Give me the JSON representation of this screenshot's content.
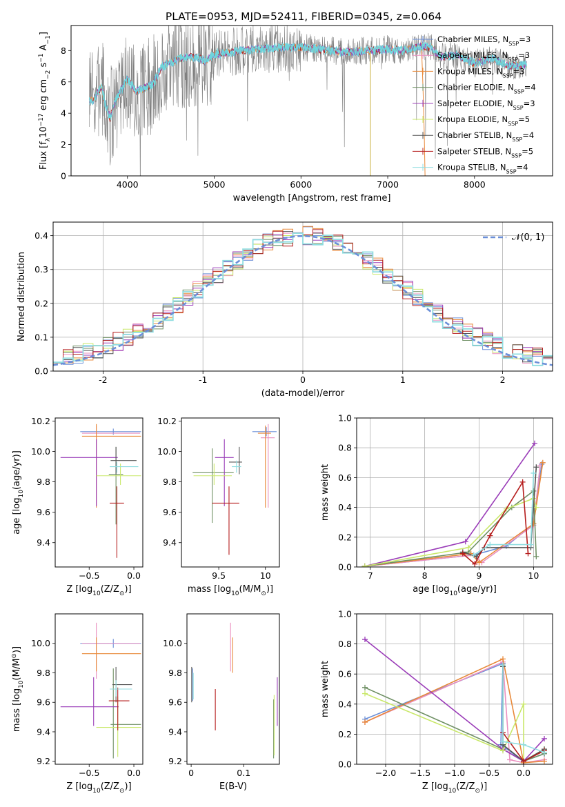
{
  "figure": {
    "title": "PLATE=0953, MJD=52411, FIBERID=0345, z=0.064",
    "colors": [
      "#6b8fd8",
      "#ea8fbf",
      "#e8893a",
      "#6e8f63",
      "#9a3cb8",
      "#c9e86a",
      "#555555",
      "#b51c1c",
      "#8fdde0"
    ]
  },
  "chart_data": [
    {
      "id": "spectrum",
      "type": "line",
      "xlabel": "wavelength [Angstrom, rest frame]",
      "ylabel_parts": [
        "Flux [f",
        "λ",
        "10",
        "−17",
        " erg cm",
        "−2",
        " s",
        "−1",
        " A",
        "−1",
        "]"
      ],
      "xlim": [
        3350,
        8900
      ],
      "ylim": [
        0,
        9.6
      ],
      "xticks": [
        4000,
        5000,
        6000,
        7000,
        8000
      ],
      "yticks": [
        0,
        2,
        4,
        6,
        8
      ],
      "grid": false,
      "legend_position": "top-right",
      "model_color": "#6fd5dc",
      "data_color": "#808080",
      "continuum": {
        "x": [
          3600,
          3700,
          3750,
          3800,
          3850,
          3900,
          4000,
          4100,
          4200,
          4300,
          4400,
          4500,
          4600,
          4800,
          4900,
          5000,
          5100,
          5300,
          5500,
          5800,
          6000,
          6200,
          6500,
          6800,
          7000,
          7200,
          7400,
          7500,
          7600,
          7800,
          8000,
          8200,
          8400,
          8600
        ],
        "y": [
          4.8,
          5.7,
          4.5,
          3.7,
          4.6,
          5.2,
          6.2,
          5.4,
          5.6,
          5.9,
          7.0,
          7.2,
          7.5,
          7.6,
          7.3,
          7.8,
          7.8,
          8.0,
          8.1,
          8.2,
          8.2,
          8.1,
          7.9,
          8.0,
          8.1,
          8.0,
          8.3,
          8.2,
          7.6,
          7.7,
          7.2,
          7.5,
          7.0,
          7.1
        ]
      },
      "series": [
        {
          "label": "Chabrier MILES, N",
          "sub": "SSP",
          "eq": "=3"
        },
        {
          "label": "Salpeter MILES, N",
          "sub": "SSP",
          "eq": "=3"
        },
        {
          "label": "Kroupa MILES, N",
          "sub": "SSP",
          "eq": "=3"
        },
        {
          "label": "Chabrier ELODIE, N",
          "sub": "SSP",
          "eq": "=4"
        },
        {
          "label": "Salpeter ELODIE, N",
          "sub": "SSP",
          "eq": "=3"
        },
        {
          "label": "Kroupa ELODIE, N",
          "sub": "SSP",
          "eq": "=5"
        },
        {
          "label": "Chabrier STELIB, N",
          "sub": "SSP",
          "eq": "=4"
        },
        {
          "label": "Salpeter STELIB, N",
          "sub": "SSP",
          "eq": "=5"
        },
        {
          "label": "Kroupa STELIB, N",
          "sub": "SSP",
          "eq": "=4"
        }
      ]
    },
    {
      "id": "residuals",
      "type": "line",
      "xlabel": "(data-model)/error",
      "ylabel": "Normed distribution",
      "xlim": [
        -2.5,
        2.5
      ],
      "ylim": [
        0,
        0.44
      ],
      "xticks": [
        -2,
        -1,
        0,
        1,
        2
      ],
      "yticks": [
        0.0,
        0.1,
        0.2,
        0.3,
        0.4
      ],
      "grid": true,
      "legend_position": "top-right",
      "gaussian_label": "𝒩(0, 1)",
      "gaussian_mean": 0,
      "gaussian_sigma": 1
    },
    {
      "id": "age_vs_z",
      "type": "scatter",
      "xlabel_parts": [
        "Z [log",
        "10",
        "(Z/Z",
        "⊙",
        ")]"
      ],
      "ylabel_parts": [
        "age  [log",
        "10",
        "(age/yr)]"
      ],
      "xlim": [
        -0.88,
        0.1
      ],
      "ylim": [
        9.24,
        10.22
      ],
      "xticks": [
        -0.5,
        0.0
      ],
      "xticklabels": [
        "−0.5",
        "0.0"
      ],
      "yticks": [
        9.4,
        9.6,
        9.8,
        10.0,
        10.2
      ],
      "grid": false,
      "points": [
        {
          "x": -0.23,
          "xlo": -0.6,
          "xhi": 0.08,
          "y": 10.13,
          "ylo": 10.11,
          "yhi": 10.15
        },
        {
          "x": -0.42,
          "xlo": -0.58,
          "xhi": 0.07,
          "y": 10.12,
          "ylo": 9.64,
          "yhi": 10.17
        },
        {
          "x": -0.42,
          "xlo": -0.58,
          "xhi": 0.08,
          "y": 10.1,
          "ylo": 9.63,
          "yhi": 10.18
        },
        {
          "x": -0.2,
          "xlo": -0.28,
          "xhi": -0.12,
          "y": 9.85,
          "ylo": 9.52,
          "yhi": 10.03
        },
        {
          "x": -0.42,
          "xlo": -0.82,
          "xhi": -0.18,
          "y": 9.96,
          "ylo": 9.64,
          "yhi": 10.08
        },
        {
          "x": -0.15,
          "xlo": -0.42,
          "xhi": 0.08,
          "y": 9.84,
          "ylo": 9.78,
          "yhi": 9.92
        },
        {
          "x": -0.2,
          "xlo": -0.26,
          "xhi": 0.03,
          "y": 9.94,
          "ylo": 9.85,
          "yhi": 10.03
        },
        {
          "x": -0.19,
          "xlo": -0.27,
          "xhi": -0.11,
          "y": 9.66,
          "ylo": 9.3,
          "yhi": 9.77
        },
        {
          "x": -0.19,
          "xlo": -0.27,
          "xhi": 0.05,
          "y": 9.9,
          "ylo": 9.86,
          "yhi": 9.93
        }
      ]
    },
    {
      "id": "age_vs_mass",
      "type": "scatter",
      "xlabel_parts": [
        "mass [log",
        "10",
        "(M/M",
        "⊙",
        ")]"
      ],
      "xlim": [
        9.1,
        10.15
      ],
      "ylim": [
        9.24,
        10.22
      ],
      "xticks": [
        9.5,
        10.0
      ],
      "yticks": [
        9.4,
        9.6,
        9.8,
        10.0,
        10.2
      ],
      "grid": false,
      "points": [
        {
          "x": 10.01,
          "xlo": 9.86,
          "xhi": 10.12,
          "y": 10.13,
          "ylo": 10.1,
          "yhi": 10.16
        },
        {
          "x": 10.03,
          "xlo": 9.95,
          "xhi": 10.1,
          "y": 10.09,
          "ylo": 9.63,
          "yhi": 10.18
        },
        {
          "x": 10.0,
          "xlo": 9.92,
          "xhi": 10.06,
          "y": 10.12,
          "ylo": 9.63,
          "yhi": 10.17
        },
        {
          "x": 9.43,
          "xlo": 9.22,
          "xhi": 9.66,
          "y": 9.86,
          "ylo": 9.53,
          "yhi": 10.02
        },
        {
          "x": 9.56,
          "xlo": 9.46,
          "xhi": 9.66,
          "y": 9.96,
          "ylo": 9.64,
          "yhi": 10.08
        },
        {
          "x": 9.45,
          "xlo": 9.23,
          "xhi": 9.64,
          "y": 9.84,
          "ylo": 9.78,
          "yhi": 9.92
        },
        {
          "x": 9.72,
          "xlo": 9.61,
          "xhi": 9.75,
          "y": 9.93,
          "ylo": 9.85,
          "yhi": 10.03
        },
        {
          "x": 9.61,
          "xlo": 9.43,
          "xhi": 9.72,
          "y": 9.66,
          "ylo": 9.32,
          "yhi": 9.77
        },
        {
          "x": 9.69,
          "xlo": 9.64,
          "xhi": 9.74,
          "y": 9.9,
          "ylo": 9.86,
          "yhi": 9.94
        }
      ]
    },
    {
      "id": "weight_vs_age",
      "type": "line",
      "xlabel_parts": [
        "age  [log",
        "10",
        "(age/yr)]"
      ],
      "ylabel": "mass weight",
      "xlim": [
        6.75,
        10.35
      ],
      "ylim": [
        0,
        1.0
      ],
      "xticks": [
        7,
        8,
        9,
        10
      ],
      "yticks": [
        0.0,
        0.2,
        0.4,
        0.6,
        0.8,
        1.0
      ],
      "grid": true,
      "series": [
        {
          "x": [
            6.9,
            8.9,
            9.5,
            10.0,
            10.15
          ],
          "y": [
            0.005,
            0.08,
            0.14,
            0.29,
            0.69
          ]
        },
        {
          "x": [
            6.9,
            8.9,
            9.05,
            10.0,
            10.12
          ],
          "y": [
            0.005,
            0.08,
            0.03,
            0.28,
            0.68
          ]
        },
        {
          "x": [
            6.9,
            8.85,
            9.0,
            10.0,
            10.17
          ],
          "y": [
            0.005,
            0.09,
            0.03,
            0.29,
            0.7
          ]
        },
        {
          "x": [
            6.9,
            8.8,
            9.6,
            10.0,
            10.05
          ],
          "y": [
            0.005,
            0.1,
            0.4,
            0.51,
            0.07
          ]
        },
        {
          "x": [
            6.9,
            8.75,
            10.02
          ],
          "y": [
            0.005,
            0.17,
            0.83
          ]
        },
        {
          "x": [
            6.9,
            8.8,
            9.5,
            10.0,
            10.05
          ],
          "y": [
            0.005,
            0.13,
            0.39,
            0.46,
            0.4
          ]
        },
        {
          "x": [
            8.7,
            8.95,
            9.1,
            9.95,
            10.05
          ],
          "y": [
            0.1,
            0.07,
            0.13,
            0.13,
            0.67
          ]
        },
        {
          "x": [
            8.7,
            8.92,
            9.2,
            9.8,
            9.9
          ],
          "y": [
            0.09,
            0.02,
            0.21,
            0.57,
            0.09
          ]
        },
        {
          "x": [
            8.9,
            9.2,
            9.95,
            10.0
          ],
          "y": [
            0.08,
            0.15,
            0.15,
            0.63
          ]
        }
      ]
    },
    {
      "id": "mass_vs_z",
      "type": "scatter",
      "xlabel_parts": [
        "Z [log",
        "10",
        "(Z/Z",
        "⊙",
        ")]"
      ],
      "ylabel_parts": [
        "mass [log",
        "10",
        "(M/M",
        "⊙",
        ")]"
      ],
      "xlim": [
        -0.88,
        0.1
      ],
      "ylim": [
        9.18,
        10.2
      ],
      "xticks": [
        -0.5,
        0.0
      ],
      "xticklabels": [
        "−0.5",
        "0.0"
      ],
      "yticks": [
        9.2,
        9.4,
        9.6,
        9.8,
        10.0
      ],
      "grid": false,
      "points": [
        {
          "x": -0.23,
          "xlo": -0.6,
          "xhi": 0.08,
          "y": 10.0,
          "ylo": 9.97,
          "yhi": 10.03
        },
        {
          "x": -0.42,
          "xlo": -0.58,
          "xhi": 0.07,
          "y": 10.0,
          "ylo": 9.76,
          "yhi": 10.14
        },
        {
          "x": -0.42,
          "xlo": -0.58,
          "xhi": 0.08,
          "y": 9.93,
          "ylo": 9.81,
          "yhi": 10.04
        },
        {
          "x": -0.23,
          "xlo": -0.26,
          "xhi": 0.08,
          "y": 9.45,
          "ylo": 9.22,
          "yhi": 9.83
        },
        {
          "x": -0.45,
          "xlo": -0.82,
          "xhi": -0.17,
          "y": 9.57,
          "ylo": 9.44,
          "yhi": 9.77
        },
        {
          "x": -0.18,
          "xlo": -0.42,
          "xhi": 0.08,
          "y": 9.43,
          "ylo": 9.23,
          "yhi": 9.64
        },
        {
          "x": -0.2,
          "xlo": -0.24,
          "xhi": -0.02,
          "y": 9.72,
          "ylo": 9.6,
          "yhi": 9.84
        },
        {
          "x": -0.18,
          "xlo": -0.28,
          "xhi": -0.05,
          "y": 9.61,
          "ylo": 9.41,
          "yhi": 9.7
        },
        {
          "x": -0.2,
          "xlo": -0.27,
          "xhi": -0.02,
          "y": 9.69,
          "ylo": 9.64,
          "yhi": 9.75
        }
      ]
    },
    {
      "id": "mass_vs_ebv",
      "type": "scatter",
      "xlabel": "E(B-V)",
      "xlim": [
        -0.008,
        0.168
      ],
      "ylim": [
        9.18,
        10.2
      ],
      "xticks": [
        0.0,
        0.1
      ],
      "yticks": [
        9.2,
        9.4,
        9.6,
        9.8,
        10.0
      ],
      "grid": false,
      "points": [
        {
          "x": 0.003,
          "y": 9.72,
          "ylo": 9.61,
          "yhi": 9.83
        },
        {
          "x": 0.075,
          "y": 9.93,
          "ylo": 9.81,
          "yhi": 10.14
        },
        {
          "x": 0.079,
          "y": 9.93,
          "ylo": 9.8,
          "yhi": 10.04
        },
        {
          "x": 0.157,
          "y": 9.45,
          "ylo": 9.22,
          "yhi": 9.62
        },
        {
          "x": 0.164,
          "y": 9.57,
          "ylo": 9.44,
          "yhi": 9.77
        },
        {
          "x": 0.158,
          "y": 9.43,
          "ylo": 9.24,
          "yhi": 9.65
        },
        {
          "x": 0.001,
          "y": 9.72,
          "ylo": 9.6,
          "yhi": 9.84
        },
        {
          "x": 0.046,
          "y": 9.55,
          "ylo": 9.41,
          "yhi": 9.69
        },
        {
          "x": 0.004,
          "y": 9.7,
          "ylo": 9.62,
          "yhi": 9.8
        }
      ]
    },
    {
      "id": "weight_vs_z",
      "type": "line",
      "xlabel_parts": [
        "Z [log",
        "10",
        "(Z/Z",
        "⊙",
        ")]"
      ],
      "ylabel": "mass weight",
      "xlim": [
        -2.42,
        0.42
      ],
      "ylim": [
        0,
        1.0
      ],
      "xticks": [
        -2.0,
        -1.5,
        -1.0,
        -0.5,
        0.0
      ],
      "xticklabels": [
        "−2.0",
        "−1.5",
        "−1.0",
        "−0.5",
        "0.0"
      ],
      "yticks": [
        0.0,
        0.2,
        0.4,
        0.6,
        0.8,
        1.0
      ],
      "grid": true,
      "series": [
        {
          "x": [
            -2.3,
            -0.3,
            -0.33,
            0.0,
            0.3
          ],
          "y": [
            0.3,
            0.67,
            0.13,
            0.02,
            0.07
          ]
        },
        {
          "x": [
            -2.3,
            -0.3,
            -0.2,
            0.0,
            0.3
          ],
          "y": [
            0.28,
            0.68,
            0.03,
            0.01,
            0.03
          ]
        },
        {
          "x": [
            -2.3,
            -0.3,
            0.0,
            0.3
          ],
          "y": [
            0.28,
            0.7,
            0.01,
            0.02
          ]
        },
        {
          "x": [
            -2.3,
            -0.3,
            0.0,
            0.3
          ],
          "y": [
            0.51,
            0.1,
            0.02,
            0.07
          ]
        },
        {
          "x": [
            -2.3,
            -0.3,
            0.0,
            0.3
          ],
          "y": [
            0.83,
            0.1,
            0.02,
            0.17
          ]
        },
        {
          "x": [
            -2.3,
            -0.3,
            0.0,
            0.0,
            0.3
          ],
          "y": [
            0.47,
            0.09,
            0.4,
            0.02,
            0.1
          ]
        },
        {
          "x": [
            -0.3,
            -0.3,
            0.0,
            0.3
          ],
          "y": [
            0.65,
            0.13,
            0.02,
            0.1
          ]
        },
        {
          "x": [
            -0.3,
            0.0,
            0.3
          ],
          "y": [
            0.21,
            0.02,
            0.09
          ]
        },
        {
          "x": [
            -0.3,
            -0.3,
            0.0,
            0.3
          ],
          "y": [
            0.66,
            0.15,
            0.13,
            0.08
          ]
        }
      ]
    }
  ]
}
